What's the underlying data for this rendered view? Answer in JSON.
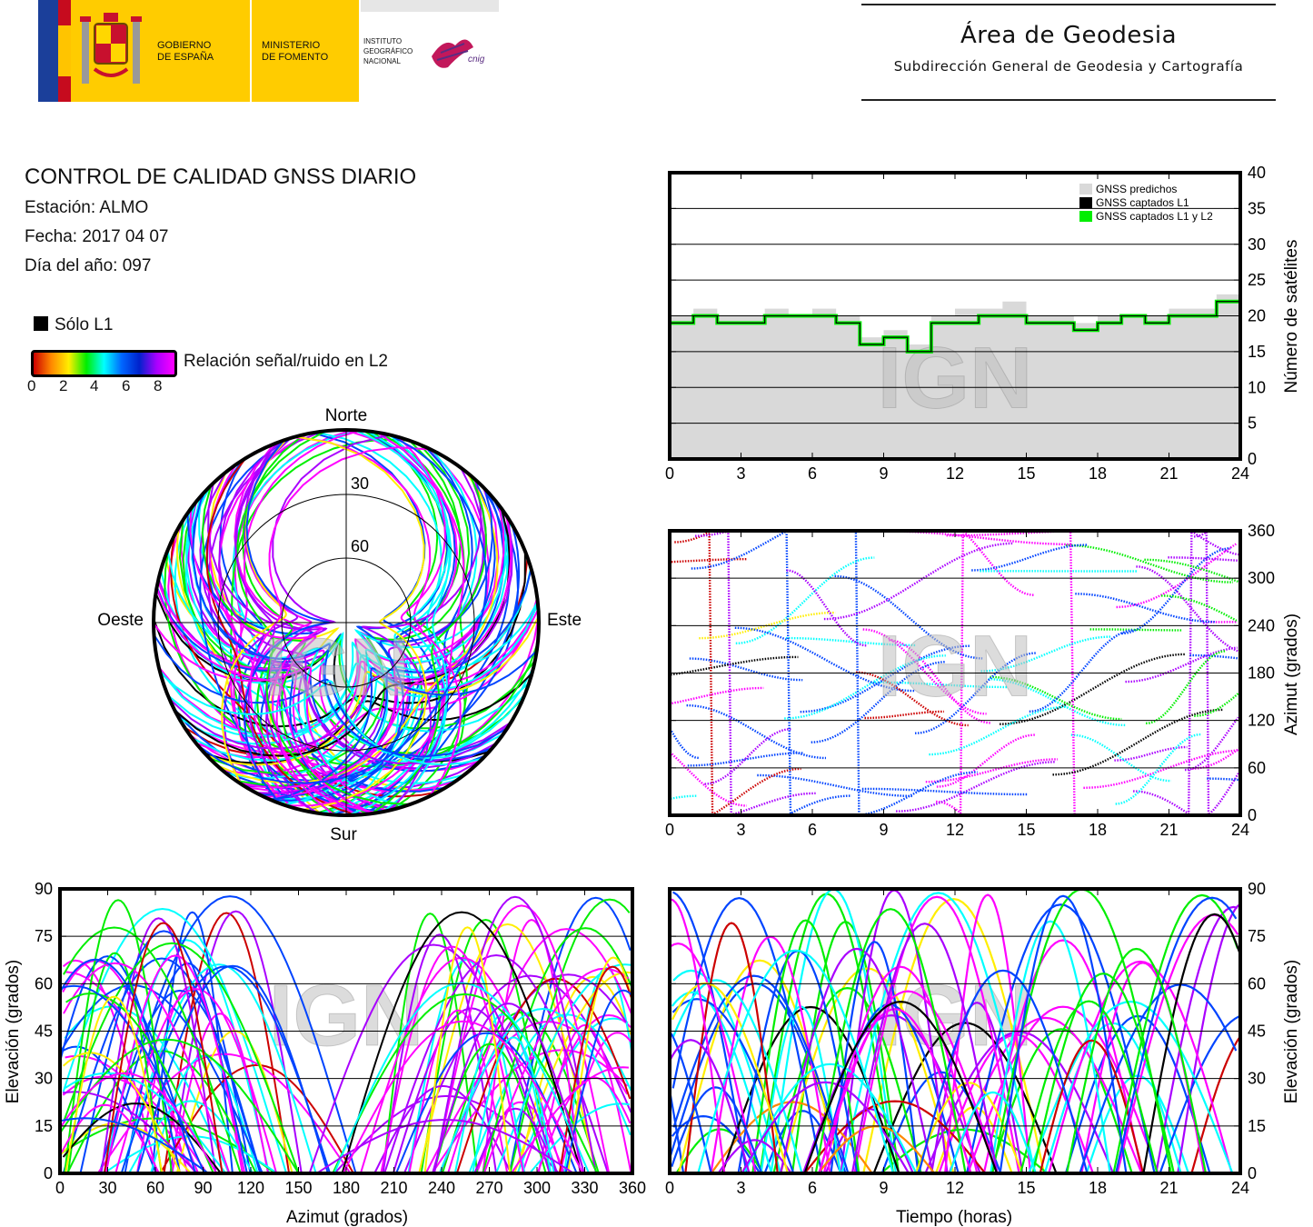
{
  "header": {
    "gov_line1": "GOBIERNO",
    "gov_line2": "DE ESPAÑA",
    "min_line1": "MINISTERIO",
    "min_line2": "DE FOMENTO",
    "ign_line1": "INSTITUTO",
    "ign_line2": "GEOGRÁFICO",
    "ign_line3": "NACIONAL",
    "cnig_logo": "cnig",
    "area_title": "Área de Geodesia",
    "area_subtitle": "Subdirección General de Geodesia y Cartografía"
  },
  "report": {
    "title": "CONTROL DE CALIDAD GNSS DIARIO",
    "station": "Estación: ALMO",
    "date": "Fecha: 2017 04 07",
    "doy": "Día del año: 097"
  },
  "legend": {
    "solo_l1": "Sólo L1",
    "snr_label": "Relación señal/ruido en L2",
    "snr_ticks": [
      "0",
      "2",
      "4",
      "6",
      "8"
    ]
  },
  "watermark": "IGN",
  "colors": {
    "predicted": "#d9d9d9",
    "l1": "#000000",
    "l1l2": "#00ee00",
    "snr_scale": [
      "#cc0000",
      "#ff8800",
      "#ffee00",
      "#00ee00",
      "#00ffff",
      "#0044ff",
      "#aa00ff",
      "#ff00ff"
    ]
  },
  "chart_data": [
    {
      "id": "satellite-count",
      "type": "line",
      "ylabel": "Número de satélites",
      "xlim": [
        0,
        24
      ],
      "ylim": [
        0,
        40
      ],
      "xticks": [
        0,
        3,
        6,
        9,
        12,
        15,
        18,
        21,
        24
      ],
      "yticks": [
        0,
        5,
        10,
        15,
        20,
        25,
        30,
        35,
        40
      ],
      "grid": true,
      "legend_position": "top-right",
      "series": [
        {
          "name": "GNSS predichos",
          "x": [
            0,
            1,
            2,
            3,
            4,
            5,
            6,
            7,
            8,
            9,
            10,
            11,
            12,
            13,
            14,
            15,
            16,
            17,
            18,
            19,
            20,
            21,
            22,
            23,
            24
          ],
          "y": [
            20,
            21,
            20,
            20,
            21,
            20,
            21,
            20,
            17,
            18,
            16,
            20,
            21,
            21,
            22,
            20,
            20,
            19,
            20,
            20,
            20,
            21,
            21,
            23,
            19
          ]
        },
        {
          "name": "GNSS captados L1",
          "x": [
            0,
            1,
            2,
            3,
            4,
            5,
            6,
            7,
            8,
            9,
            10,
            11,
            12,
            13,
            14,
            15,
            16,
            17,
            18,
            19,
            20,
            21,
            22,
            23,
            24
          ],
          "y": [
            19,
            20,
            19,
            19,
            20,
            20,
            20,
            19,
            16,
            17,
            15,
            19,
            19,
            20,
            20,
            19,
            19,
            18,
            19,
            20,
            19,
            20,
            20,
            22,
            18
          ]
        },
        {
          "name": "GNSS captados L1 y L2",
          "x": [
            0,
            1,
            2,
            3,
            4,
            5,
            6,
            7,
            8,
            9,
            10,
            11,
            12,
            13,
            14,
            15,
            16,
            17,
            18,
            19,
            20,
            21,
            22,
            23,
            24
          ],
          "y": [
            19,
            20,
            19,
            19,
            20,
            20,
            20,
            19,
            16,
            17,
            15,
            19,
            19,
            20,
            20,
            19,
            19,
            18,
            19,
            20,
            19,
            20,
            20,
            22,
            18
          ]
        }
      ]
    },
    {
      "id": "azimuth-time",
      "type": "scatter",
      "ylabel": "Azimut (grados)",
      "xlim": [
        0,
        24
      ],
      "ylim": [
        0,
        360
      ],
      "xticks": [
        0,
        3,
        6,
        9,
        12,
        15,
        18,
        21,
        24
      ],
      "yticks": [
        0,
        60,
        120,
        180,
        240,
        300,
        360
      ],
      "grid": true
    },
    {
      "id": "skyplot",
      "type": "scatter",
      "directions": {
        "n": "Norte",
        "s": "Sur",
        "e": "Este",
        "w": "Oeste"
      },
      "elevation_rings": [
        "30",
        "60"
      ]
    },
    {
      "id": "elevation-azimuth",
      "type": "scatter",
      "xlabel": "Azimut (grados)",
      "ylabel": "Elevación (grados)",
      "xlim": [
        0,
        360
      ],
      "ylim": [
        0,
        90
      ],
      "xticks": [
        0,
        30,
        60,
        90,
        120,
        150,
        180,
        210,
        240,
        270,
        300,
        330,
        360
      ],
      "yticks": [
        0,
        15,
        30,
        45,
        60,
        75,
        90
      ],
      "grid": true
    },
    {
      "id": "elevation-time",
      "type": "scatter",
      "xlabel": "Tiempo (horas)",
      "ylabel": "Elevación (grados)",
      "xlim": [
        0,
        24
      ],
      "ylim": [
        0,
        90
      ],
      "xticks": [
        0,
        3,
        6,
        9,
        12,
        15,
        18,
        21,
        24
      ],
      "yticks": [
        0,
        15,
        30,
        45,
        60,
        75,
        90
      ],
      "grid": true
    }
  ]
}
